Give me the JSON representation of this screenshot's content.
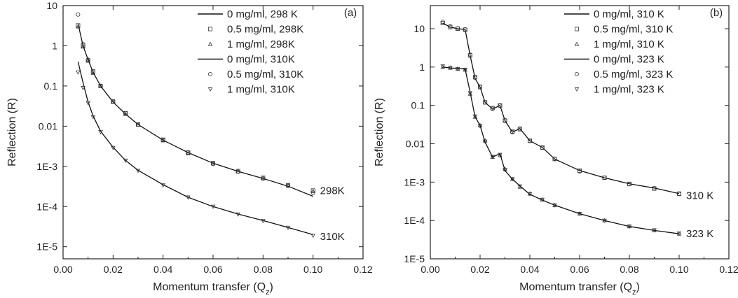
{
  "chart_data": [
    {
      "type": "line",
      "panel_label": "(a)",
      "xlabel": "Momentum transfer (Q",
      "xlabel_sub": "z",
      "ylabel": "Reflection (R)",
      "x_scale": "linear",
      "y_scale": "log",
      "xlim": [
        0.0,
        0.12
      ],
      "ylim": [
        5e-06,
        10
      ],
      "x_ticks": [
        "0.00",
        "0.02",
        "0.04",
        "0.06",
        "0.08",
        "0.10",
        "0.12"
      ],
      "x_tick_values": [
        0,
        0.02,
        0.04,
        0.06,
        0.08,
        0.1,
        0.12
      ],
      "y_ticks": [
        "10",
        "1",
        "0.1",
        "0.01",
        "1E-3",
        "1E-4",
        "1E-5"
      ],
      "y_tick_values": [
        10,
        1,
        0.1,
        0.01,
        0.001,
        0.0001,
        1e-05
      ],
      "legend_position": "top-right",
      "annotations": [
        {
          "text": "298K",
          "x": 0.1,
          "y": 0.00025
        },
        {
          "text": "310K",
          "x": 0.1,
          "y": 1.8e-05
        }
      ],
      "series": [
        {
          "name": "0 mg/ml, 298 K",
          "marker": "line",
          "x": [
            0.006,
            0.008,
            0.01,
            0.012,
            0.015,
            0.02,
            0.025,
            0.03,
            0.04,
            0.05,
            0.06,
            0.07,
            0.08,
            0.09,
            0.1
          ],
          "y": [
            3.5,
            1.0,
            0.45,
            0.22,
            0.1,
            0.04,
            0.02,
            0.011,
            0.0045,
            0.0022,
            0.0012,
            0.00075,
            0.0005,
            0.00032,
            0.00018
          ]
        },
        {
          "name": "0.5 mg/ml, 298K",
          "marker": "square",
          "x": [
            0.006,
            0.008,
            0.01,
            0.012,
            0.015,
            0.02,
            0.025,
            0.03,
            0.04,
            0.05,
            0.06,
            0.07,
            0.08,
            0.09,
            0.1
          ],
          "y": [
            3.2,
            1.0,
            0.43,
            0.23,
            0.1,
            0.041,
            0.021,
            0.011,
            0.0046,
            0.0022,
            0.0012,
            0.00076,
            0.00052,
            0.00034,
            0.00025
          ]
        },
        {
          "name": "1 mg/ml, 298K",
          "marker": "triangle-up",
          "x": [
            0.006,
            0.008,
            0.01,
            0.012,
            0.015,
            0.02,
            0.025,
            0.03,
            0.04,
            0.05,
            0.06,
            0.07,
            0.08,
            0.09,
            0.1
          ],
          "y": [
            3.0,
            0.95,
            0.44,
            0.21,
            0.098,
            0.04,
            0.02,
            0.0108,
            0.0044,
            0.0021,
            0.00118,
            0.00074,
            0.0005,
            0.00033,
            0.00024
          ]
        },
        {
          "name": "0 mg/ml, 310K",
          "marker": "line",
          "x": [
            0.006,
            0.008,
            0.01,
            0.012,
            0.015,
            0.02,
            0.025,
            0.03,
            0.04,
            0.05,
            0.06,
            0.07,
            0.08,
            0.09,
            0.1
          ],
          "y": [
            0.4,
            0.12,
            0.04,
            0.018,
            0.0075,
            0.003,
            0.0014,
            0.0008,
            0.00035,
            0.00017,
            0.0001,
            6.5e-05,
            4.5e-05,
            3e-05,
            2e-05
          ]
        },
        {
          "name": "0.5 mg/ml, 310K",
          "marker": "circle",
          "x": [
            0.006,
            0.008,
            0.01,
            0.012,
            0.015,
            0.02,
            0.025,
            0.03,
            0.04,
            0.05,
            0.06,
            0.07,
            0.08,
            0.09,
            0.1
          ],
          "y": [
            6.0,
            1.1,
            0.45,
            0.22,
            0.1,
            0.041,
            0.021,
            0.011,
            0.0045,
            0.0022,
            0.00115,
            0.00074,
            0.0005,
            0.00033,
            0.00022
          ]
        },
        {
          "name": "1 mg/ml, 310K",
          "marker": "triangle-down",
          "x": [
            0.006,
            0.008,
            0.01,
            0.012,
            0.015,
            0.02,
            0.025,
            0.03,
            0.04,
            0.05,
            0.06,
            0.07,
            0.08,
            0.09,
            0.1
          ],
          "y": [
            0.22,
            0.09,
            0.038,
            0.017,
            0.0072,
            0.0029,
            0.0014,
            0.00078,
            0.00034,
            0.00017,
            0.0001,
            6.4e-05,
            4.4e-05,
            3e-05,
            1.9e-05
          ]
        }
      ]
    },
    {
      "type": "line",
      "panel_label": "(b)",
      "xlabel": "Momentum transfer (Q",
      "xlabel_sub": "z",
      "ylabel": "Reflection (R)",
      "x_scale": "linear",
      "y_scale": "log",
      "xlim": [
        0.0,
        0.12
      ],
      "ylim": [
        1e-05,
        40
      ],
      "x_ticks": [
        "0.00",
        "0.02",
        "0.04",
        "0.06",
        "0.08",
        "0.10",
        "0.12"
      ],
      "x_tick_values": [
        0,
        0.02,
        0.04,
        0.06,
        0.08,
        0.1,
        0.12
      ],
      "y_ticks": [
        "10",
        "1",
        "0.1",
        "0.01",
        "1E-3",
        "1E-4",
        "1E-5"
      ],
      "y_tick_values": [
        10,
        1,
        0.1,
        0.01,
        0.001,
        0.0001,
        1e-05
      ],
      "legend_position": "top-right",
      "annotations": [
        {
          "text": "310 K",
          "x": 0.1,
          "y": 0.00045
        },
        {
          "text": "323 K",
          "x": 0.1,
          "y": 4.5e-05
        }
      ],
      "series": [
        {
          "name": "0 mg/ml, 310 K",
          "marker": "line",
          "x": [
            0.005,
            0.008,
            0.011,
            0.014,
            0.016,
            0.018,
            0.02,
            0.022,
            0.025,
            0.028,
            0.03,
            0.033,
            0.036,
            0.04,
            0.045,
            0.05,
            0.06,
            0.07,
            0.08,
            0.09,
            0.1
          ],
          "y": [
            14,
            11,
            10,
            9.5,
            2.0,
            0.5,
            0.3,
            0.12,
            0.08,
            0.1,
            0.04,
            0.02,
            0.025,
            0.012,
            0.008,
            0.004,
            0.002,
            0.0013,
            0.0009,
            0.0007,
            0.0005
          ]
        },
        {
          "name": "0.5 mg/ml, 310 K",
          "marker": "square",
          "x": [
            0.005,
            0.008,
            0.011,
            0.014,
            0.016,
            0.018,
            0.02,
            0.022,
            0.025,
            0.028,
            0.03,
            0.033,
            0.036,
            0.04,
            0.045,
            0.05,
            0.06,
            0.07,
            0.08,
            0.09,
            0.1
          ],
          "y": [
            14,
            11,
            10,
            9.4,
            2.0,
            0.55,
            0.3,
            0.12,
            0.085,
            0.1,
            0.04,
            0.021,
            0.024,
            0.012,
            0.008,
            0.004,
            0.002,
            0.0013,
            0.0009,
            0.00068,
            0.0005
          ]
        },
        {
          "name": "1 mg/ml, 310 K",
          "marker": "triangle-up",
          "x": [
            0.005,
            0.008,
            0.011,
            0.014,
            0.016,
            0.018,
            0.02,
            0.022,
            0.025,
            0.028,
            0.03,
            0.033,
            0.036,
            0.04,
            0.045,
            0.05,
            0.06,
            0.07,
            0.08,
            0.09,
            0.1
          ],
          "y": [
            1.0,
            0.95,
            0.9,
            0.85,
            0.2,
            0.05,
            0.03,
            0.012,
            0.0045,
            0.005,
            0.0022,
            0.0012,
            0.00075,
            0.0005,
            0.00035,
            0.00025,
            0.00015,
            0.0001,
            7e-05,
            5.5e-05,
            4.5e-05
          ]
        },
        {
          "name": "0 mg/ml, 323 K",
          "marker": "line",
          "x": [
            0.005,
            0.008,
            0.011,
            0.014,
            0.016,
            0.018,
            0.02,
            0.022,
            0.025,
            0.028,
            0.03,
            0.033,
            0.036,
            0.04,
            0.045,
            0.05,
            0.06,
            0.07,
            0.08,
            0.09,
            0.1
          ],
          "y": [
            1.0,
            0.95,
            0.92,
            0.88,
            0.22,
            0.05,
            0.03,
            0.011,
            0.0045,
            0.0055,
            0.002,
            0.0012,
            0.0008,
            0.00048,
            0.00034,
            0.00025,
            0.00015,
            0.0001,
            7e-05,
            5.5e-05,
            4.5e-05
          ]
        },
        {
          "name": "0.5 mg/ml, 323 K",
          "marker": "circle",
          "x": [
            0.005,
            0.008,
            0.011,
            0.014,
            0.016,
            0.018,
            0.02,
            0.022,
            0.025,
            0.028,
            0.03,
            0.033,
            0.036,
            0.04,
            0.045,
            0.05,
            0.06,
            0.07,
            0.08,
            0.09,
            0.1
          ],
          "y": [
            15,
            11.5,
            10.2,
            9.6,
            2.1,
            0.52,
            0.31,
            0.12,
            0.082,
            0.098,
            0.041,
            0.02,
            0.025,
            0.0118,
            0.0078,
            0.0041,
            0.0019,
            0.0013,
            0.00088,
            0.00069,
            0.00049
          ]
        },
        {
          "name": "1 mg/ml, 323 K",
          "marker": "triangle-down",
          "x": [
            0.005,
            0.008,
            0.011,
            0.014,
            0.016,
            0.018,
            0.02,
            0.022,
            0.025,
            0.028,
            0.03,
            0.033,
            0.036,
            0.04,
            0.045,
            0.05,
            0.06,
            0.07,
            0.08,
            0.09,
            0.1
          ],
          "y": [
            1.05,
            0.96,
            0.9,
            0.86,
            0.21,
            0.052,
            0.029,
            0.0115,
            0.0046,
            0.0052,
            0.0021,
            0.0012,
            0.00078,
            0.00049,
            0.00035,
            0.00025,
            0.00015,
            0.0001,
            7e-05,
            5.6e-05,
            4.6e-05
          ]
        }
      ]
    }
  ]
}
